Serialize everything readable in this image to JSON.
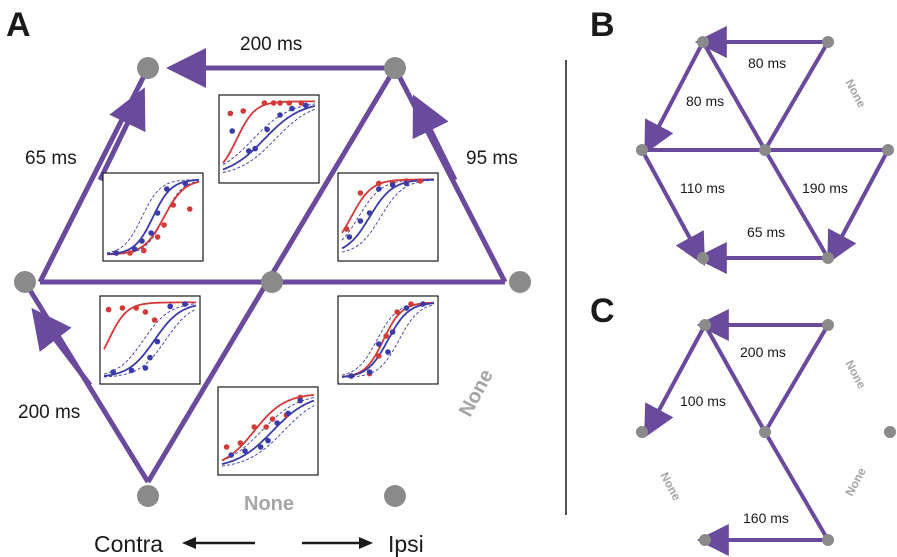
{
  "panels": {
    "A": {
      "letter": "A",
      "labels": {
        "top": "200 ms",
        "left": "65 ms",
        "right": "95 ms",
        "bottom_left": "200 ms",
        "none_right": "None",
        "none_bottom": "None"
      }
    },
    "B": {
      "letter": "B",
      "labels": {
        "top": "80 ms",
        "top_left": "80 ms",
        "none": "None",
        "left": "110 ms",
        "right": "190 ms",
        "bottom": "65 ms"
      }
    },
    "C": {
      "letter": "C",
      "labels": {
        "top": "200 ms",
        "left": "100 ms",
        "none_right": "None",
        "none_left": "None",
        "none_lower_right": "None",
        "bottom": "160 ms"
      }
    }
  },
  "direction_axis": {
    "contra": "Contra",
    "ipsi": "Ipsi"
  },
  "colors": {
    "edge": "#6a4a9c",
    "node": "#8a8a8a",
    "red_series": "#d23a3a",
    "blue_series": "#3a3aa8",
    "none_text": "#a6a6a6"
  },
  "insets": [
    {
      "position": "top",
      "red": {
        "mid": 0.15,
        "slope": 10,
        "points": [
          [
            0.08,
            0.82
          ],
          [
            0.22,
            0.85
          ],
          [
            0.45,
            0.95
          ],
          [
            0.55,
            0.95
          ],
          [
            0.62,
            0.95
          ],
          [
            0.72,
            0.95
          ],
          [
            0.85,
            0.95
          ]
        ]
      },
      "blue": {
        "mid": 0.45,
        "slope": 5,
        "points": [
          [
            0.1,
            0.6
          ],
          [
            0.28,
            0.35
          ],
          [
            0.35,
            0.38
          ],
          [
            0.48,
            0.62
          ],
          [
            0.62,
            0.8
          ],
          [
            0.75,
            0.88
          ],
          [
            0.9,
            0.92
          ]
        ]
      }
    },
    {
      "position": "upper-left",
      "red": {
        "mid": 0.62,
        "slope": 9,
        "points": [
          [
            0.1,
            0.05
          ],
          [
            0.25,
            0.05
          ],
          [
            0.4,
            0.08
          ],
          [
            0.55,
            0.25
          ],
          [
            0.62,
            0.4
          ],
          [
            0.72,
            0.65
          ],
          [
            0.9,
            0.6
          ]
        ]
      },
      "blue": {
        "mid": 0.5,
        "slope": 10,
        "points": [
          [
            0.1,
            0.05
          ],
          [
            0.3,
            0.1
          ],
          [
            0.38,
            0.2
          ],
          [
            0.48,
            0.3
          ],
          [
            0.55,
            0.55
          ],
          [
            0.65,
            0.85
          ],
          [
            0.85,
            0.92
          ]
        ]
      }
    },
    {
      "position": "upper-right",
      "red": {
        "mid": 0.1,
        "slope": 9,
        "points": [
          [
            0.05,
            0.35
          ],
          [
            0.2,
            0.8
          ],
          [
            0.4,
            0.92
          ],
          [
            0.55,
            0.93
          ],
          [
            0.7,
            0.95
          ],
          [
            0.85,
            0.95
          ]
        ]
      },
      "blue": {
        "mid": 0.3,
        "slope": 8,
        "points": [
          [
            0.08,
            0.25
          ],
          [
            0.2,
            0.45
          ],
          [
            0.3,
            0.55
          ],
          [
            0.4,
            0.85
          ],
          [
            0.55,
            0.9
          ],
          [
            0.7,
            0.92
          ]
        ]
      }
    },
    {
      "position": "lower-left",
      "red": {
        "mid": 0.05,
        "slope": 10,
        "points": [
          [
            0.05,
            0.88
          ],
          [
            0.2,
            0.9
          ],
          [
            0.35,
            0.9
          ],
          [
            0.45,
            0.85
          ],
          [
            0.55,
            0.75
          ],
          [
            0.72,
            0.92
          ],
          [
            0.88,
            0.95
          ]
        ]
      },
      "blue": {
        "mid": 0.55,
        "slope": 7,
        "points": [
          [
            0.1,
            0.1
          ],
          [
            0.3,
            0.12
          ],
          [
            0.45,
            0.15
          ],
          [
            0.5,
            0.28
          ],
          [
            0.58,
            0.48
          ],
          [
            0.72,
            0.92
          ],
          [
            0.88,
            0.95
          ]
        ]
      }
    },
    {
      "position": "lower-right",
      "red": {
        "mid": 0.45,
        "slope": 10,
        "points": [
          [
            0.1,
            0.05
          ],
          [
            0.3,
            0.08
          ],
          [
            0.4,
            0.3
          ],
          [
            0.48,
            0.55
          ],
          [
            0.6,
            0.85
          ],
          [
            0.75,
            0.95
          ]
        ]
      },
      "blue": {
        "mid": 0.5,
        "slope": 9,
        "points": [
          [
            0.1,
            0.05
          ],
          [
            0.3,
            0.1
          ],
          [
            0.4,
            0.45
          ],
          [
            0.5,
            0.35
          ],
          [
            0.55,
            0.6
          ],
          [
            0.7,
            0.9
          ],
          [
            0.88,
            0.95
          ]
        ]
      }
    },
    {
      "position": "bottom",
      "red": {
        "mid": 0.35,
        "slope": 6,
        "points": [
          [
            0.05,
            0.3
          ],
          [
            0.2,
            0.35
          ],
          [
            0.35,
            0.55
          ],
          [
            0.48,
            0.55
          ],
          [
            0.55,
            0.65
          ],
          [
            0.7,
            0.7
          ],
          [
            0.85,
            0.92
          ]
        ]
      },
      "blue": {
        "mid": 0.55,
        "slope": 5,
        "points": [
          [
            0.1,
            0.2
          ],
          [
            0.25,
            0.25
          ],
          [
            0.42,
            0.3
          ],
          [
            0.5,
            0.38
          ],
          [
            0.6,
            0.6
          ],
          [
            0.72,
            0.72
          ],
          [
            0.85,
            0.88
          ]
        ]
      }
    }
  ]
}
